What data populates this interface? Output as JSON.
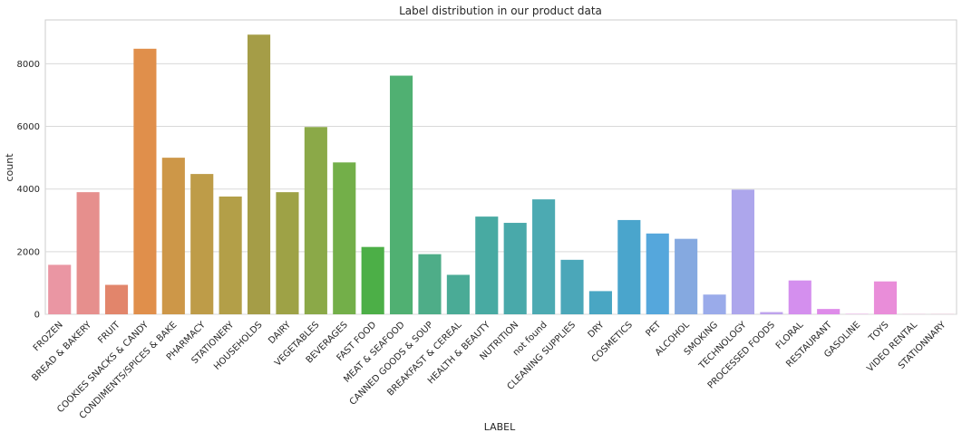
{
  "chart_data": {
    "type": "bar",
    "title": "Label distribution in our product data",
    "xlabel": "LABEL",
    "ylabel": "count",
    "ylim": [
      0,
      9400
    ],
    "yticks": [
      0,
      2000,
      4000,
      6000,
      8000
    ],
    "grid": true,
    "categories": [
      "FROZEN",
      "BREAD & BAKERY",
      "FRUIT",
      "COOKIES SNACKS & CANDY",
      "CONDIMENTS/SPICES & BAKE",
      "PHARMACY",
      "STATIONERY",
      "HOUSEHOLDS",
      "DAIRY",
      "VEGETABLES",
      "BEVERAGES",
      "FAST FOOD",
      "MEAT & SEAFOOD",
      "CANNED GOODS & SOUP",
      "BREAKFAST & CEREAL",
      "HEALTH & BEAUTY",
      "NUTRITION",
      "not found",
      "CLEANING SUPPLIES",
      "DRY",
      "COSMETICS",
      "PET",
      "ALCOHOL",
      "SMOKING",
      "TECHNOLOGY",
      "PROCESSED FOODS",
      "FLORAL",
      "RESTAURANT",
      "GASOLINE",
      "TOYS",
      "VIDEO RENTAL",
      "STATIONNARY"
    ],
    "values": [
      1580,
      3900,
      940,
      8480,
      5000,
      4480,
      3760,
      8930,
      3900,
      5980,
      4850,
      2150,
      7620,
      1920,
      1260,
      3120,
      2920,
      3670,
      1740,
      740,
      3010,
      2580,
      2410,
      630,
      3980,
      70,
      1080,
      170,
      10,
      1050,
      5,
      5
    ],
    "colors": [
      "#ea96a3",
      "#e68f8d",
      "#e2856b",
      "#e08f4b",
      "#cd9748",
      "#be9c48",
      "#b39f48",
      "#a59d47",
      "#9ea246",
      "#8ba948",
      "#73af49",
      "#4caf47",
      "#50b072",
      "#4ead88",
      "#4aab96",
      "#48aaa2",
      "#49a9aa",
      "#4caab2",
      "#4ba7b9",
      "#49a6c3",
      "#4aa5cc",
      "#55a7dc",
      "#85a9e0",
      "#9aabea",
      "#ada6ec",
      "#bea3ed",
      "#d48fee",
      "#de8be9",
      "#e48be1",
      "#e98dd9",
      "#ec90cd",
      "#ee94c2"
    ]
  }
}
